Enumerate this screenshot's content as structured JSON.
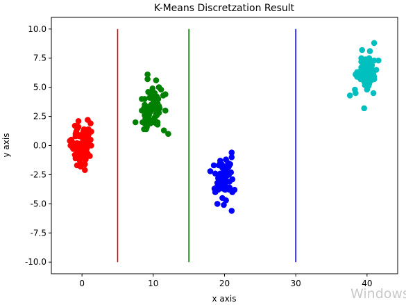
{
  "watermark": "Windows",
  "chart_data": {
    "type": "scatter",
    "title": "K-Means Discretzation Result",
    "xlabel": "x axis",
    "ylabel": "y axis",
    "xlim": [
      -4.3,
      44.3
    ],
    "ylim": [
      -11.0,
      11.0
    ],
    "xticks": [
      0,
      10,
      20,
      30,
      40
    ],
    "yticks": [
      -10.0,
      -7.5,
      -5.0,
      -2.5,
      0.0,
      2.5,
      5.0,
      7.5,
      10.0
    ],
    "grid": false,
    "legend": "none",
    "vlines": [
      {
        "x": 5,
        "ymin": -10,
        "ymax": 10,
        "color": "#e80000"
      },
      {
        "x": 15,
        "ymin": -10,
        "ymax": 10,
        "color": "#007a00"
      },
      {
        "x": 30,
        "ymin": -10,
        "ymax": 10,
        "color": "#0000ee"
      }
    ],
    "series": [
      {
        "color": "#ff0000",
        "points": [
          [
            -0.9,
            -1.1
          ],
          [
            0.1,
            -0.3
          ],
          [
            0.9,
            0.9
          ],
          [
            0.8,
            -0.7
          ],
          [
            0.4,
            0.0
          ],
          [
            0.2,
            1.2
          ],
          [
            -0.9,
            0.8
          ],
          [
            0.7,
            -0.2
          ],
          [
            -0.3,
            -0.5
          ],
          [
            -0.7,
            0.2
          ],
          [
            -0.5,
            0.0
          ],
          [
            1.0,
            0.4
          ],
          [
            -0.7,
            1.5
          ],
          [
            0.8,
            1.2
          ],
          [
            -0.1,
            0.9
          ],
          [
            -0.3,
            0.9
          ],
          [
            -0.7,
            -1.7
          ],
          [
            0.8,
            0.2
          ],
          [
            0.1,
            -0.9
          ],
          [
            -0.4,
            0.8
          ],
          [
            0.6,
            -1.0
          ],
          [
            0.7,
            0.4
          ],
          [
            0.2,
            -0.5
          ],
          [
            0.6,
            -0.8
          ],
          [
            -0.7,
            -0.7
          ],
          [
            0.4,
            -1.6
          ],
          [
            0.4,
            0.9
          ],
          [
            0.1,
            -0.8
          ],
          [
            -0.8,
            1.1
          ],
          [
            0.7,
            -0.2
          ],
          [
            -0.4,
            0.1
          ],
          [
            -0.9,
            1.0
          ],
          [
            -0.1,
            -0.3
          ],
          [
            0.2,
            -0.3
          ],
          [
            -0.5,
            1.6
          ],
          [
            0.2,
            0.3
          ],
          [
            0.4,
            -1.6
          ],
          [
            0.4,
            1.3
          ],
          [
            -0.6,
            1.5
          ],
          [
            0.0,
            0.7
          ],
          [
            0.2,
            -0.3
          ],
          [
            -0.1,
            0.2
          ],
          [
            0.6,
            -0.4
          ],
          [
            -0.3,
            -1.2
          ],
          [
            0.1,
            -0.2
          ],
          [
            0.6,
            0.1
          ],
          [
            -0.7,
            0.2
          ],
          [
            0.6,
            -0.3
          ],
          [
            0.6,
            0.8
          ],
          [
            0.9,
            1.3
          ],
          [
            -0.2,
            -1.8
          ],
          [
            -0.2,
            -1.5
          ],
          [
            -1.0,
            1.7
          ],
          [
            -1.0,
            -0.8
          ],
          [
            0.5,
            1.2
          ],
          [
            -0.6,
            -0.4
          ],
          [
            0.5,
            -1.2
          ],
          [
            0.1,
            0.7
          ],
          [
            0.5,
            0.3
          ],
          [
            -0.4,
            -1.0
          ],
          [
            0.3,
            1.3
          ],
          [
            0.3,
            0.4
          ],
          [
            0.7,
            1.0
          ],
          [
            -0.8,
            -0.1
          ],
          [
            0.6,
            -0.3
          ],
          [
            -0.3,
            -1.3
          ],
          [
            0.9,
            1.4
          ],
          [
            -0.8,
            1.2
          ],
          [
            -0.8,
            -0.1
          ],
          [
            0.3,
            1.4
          ],
          [
            -0.6,
            1.6
          ],
          [
            -1.2,
            -0.3
          ],
          [
            -1.3,
            -0.2
          ],
          [
            -1.2,
            0.2
          ],
          [
            0.4,
            -2.1
          ],
          [
            0.8,
            2.2
          ],
          [
            -0.5,
            2.1
          ],
          [
            -1.5,
            0.5
          ],
          [
            1.3,
            0.0
          ],
          [
            1.2,
            1.9
          ],
          [
            -1.6,
            0.0
          ],
          [
            1.3,
            1.2
          ],
          [
            -1.7,
            0.4
          ],
          [
            1.2,
            0.5
          ],
          [
            1.1,
            -0.9
          ]
        ]
      },
      {
        "color": "#008000",
        "points": [
          [
            10.4,
            3.5
          ],
          [
            9.9,
            3.2
          ],
          [
            8.7,
            3.2
          ],
          [
            10.7,
            4.0
          ],
          [
            9.6,
            3.4
          ],
          [
            10.8,
            2.8
          ],
          [
            8.8,
            4.0
          ],
          [
            9.4,
            2.3
          ],
          [
            9.0,
            3.0
          ],
          [
            9.0,
            2.5
          ],
          [
            9.6,
            2.9
          ],
          [
            10.6,
            3.6
          ],
          [
            10.4,
            1.9
          ],
          [
            9.8,
            2.1
          ],
          [
            10.6,
            3.2
          ],
          [
            10.6,
            2.0
          ],
          [
            9.6,
            3.1
          ],
          [
            10.7,
            3.0
          ],
          [
            10.0,
            3.9
          ],
          [
            9.0,
            1.4
          ],
          [
            10.1,
            4.1
          ],
          [
            9.7,
            3.1
          ],
          [
            10.9,
            3.2
          ],
          [
            10.0,
            4.3
          ],
          [
            8.9,
            3.4
          ],
          [
            10.1,
            2.1
          ],
          [
            9.9,
            3.1
          ],
          [
            10.4,
            2.7
          ],
          [
            10.1,
            2.0
          ],
          [
            8.8,
            2.6
          ],
          [
            10.2,
            2.4
          ],
          [
            9.9,
            4.2
          ],
          [
            9.0,
            3.1
          ],
          [
            9.6,
            1.9
          ],
          [
            10.6,
            3.1
          ],
          [
            10.5,
            4.2
          ],
          [
            10.5,
            2.6
          ],
          [
            8.8,
            3.5
          ],
          [
            9.7,
            3.5
          ],
          [
            10.8,
            3.4
          ],
          [
            9.9,
            4.3
          ],
          [
            10.6,
            2.8
          ],
          [
            10.2,
            4.5
          ],
          [
            9.5,
            4.1
          ],
          [
            10.6,
            1.8
          ],
          [
            9.2,
            2.1
          ],
          [
            8.9,
            2.3
          ],
          [
            9.4,
            2.6
          ],
          [
            8.7,
            1.4
          ],
          [
            9.3,
            4.6
          ],
          [
            10.2,
            2.2
          ],
          [
            9.9,
            4.6
          ],
          [
            11.4,
            4.3
          ],
          [
            11.5,
            1.3
          ],
          [
            10.4,
            5.6
          ],
          [
            9.1,
            1.6
          ],
          [
            11.7,
            4.4
          ],
          [
            9.2,
            6.1
          ],
          [
            9.2,
            5.7
          ],
          [
            10.8,
            5.0
          ],
          [
            8.4,
            3.0
          ],
          [
            8.4,
            4.0
          ],
          [
            11.1,
            4.8
          ],
          [
            7.5,
            2.0
          ],
          [
            12.1,
            1.0
          ],
          [
            11.7,
            3.0
          ],
          [
            9.9,
            4.9
          ],
          [
            8.5,
            2.0
          ],
          [
            9.6,
            4.4
          ],
          [
            8.8,
            1.9
          ]
        ]
      },
      {
        "color": "#0000ff",
        "points": [
          [
            19.8,
            -2.4
          ],
          [
            19.0,
            -3.5
          ],
          [
            20.2,
            -2.6
          ],
          [
            20.1,
            -3.8
          ],
          [
            19.8,
            -3.7
          ],
          [
            20.5,
            -1.5
          ],
          [
            19.6,
            -3.1
          ],
          [
            19.7,
            -1.7
          ],
          [
            20.1,
            -3.3
          ],
          [
            20.7,
            -3.1
          ],
          [
            20.0,
            -3.3
          ],
          [
            20.6,
            -2.5
          ],
          [
            19.1,
            -3.8
          ],
          [
            20.3,
            -2.4
          ],
          [
            19.2,
            -1.7
          ],
          [
            19.9,
            -2.2
          ],
          [
            20.7,
            -3.6
          ],
          [
            20.3,
            -3.1
          ],
          [
            20.3,
            -2.2
          ],
          [
            19.7,
            -3.1
          ],
          [
            20.2,
            -2.3
          ],
          [
            19.5,
            -3.5
          ],
          [
            19.7,
            -2.4
          ],
          [
            19.4,
            -1.5
          ],
          [
            19.7,
            -1.9
          ],
          [
            19.4,
            -2.4
          ],
          [
            19.6,
            -1.6
          ],
          [
            20.2,
            -3.0
          ],
          [
            20.4,
            -1.9
          ],
          [
            19.0,
            -3.2
          ],
          [
            20.7,
            -3.8
          ],
          [
            19.7,
            -3.2
          ],
          [
            19.9,
            -1.8
          ],
          [
            20.0,
            -2.0
          ],
          [
            20.4,
            -3.7
          ],
          [
            20.9,
            -2.3
          ],
          [
            20.3,
            -2.5
          ],
          [
            20.5,
            -2.4
          ],
          [
            19.3,
            -3.4
          ],
          [
            19.6,
            -2.5
          ],
          [
            19.8,
            -3.5
          ],
          [
            20.8,
            -1.6
          ],
          [
            19.9,
            -3.3
          ],
          [
            20.3,
            -2.6
          ],
          [
            20.2,
            -1.2
          ],
          [
            20.6,
            -1.8
          ],
          [
            20.3,
            -2.4
          ],
          [
            20.1,
            -3.5
          ],
          [
            19.3,
            -1.7
          ],
          [
            19.8,
            -2.6
          ],
          [
            19.9,
            -2.8
          ],
          [
            19.1,
            -2.8
          ],
          [
            20.0,
            -2.6
          ],
          [
            19.2,
            -3.7
          ],
          [
            18.7,
            -2.4
          ],
          [
            18.6,
            -3.7
          ],
          [
            19.7,
            -4.5
          ],
          [
            21.0,
            -1.0
          ],
          [
            21.0,
            -0.6
          ],
          [
            21.4,
            -3.8
          ],
          [
            21.1,
            -4.0
          ],
          [
            18.5,
            -1.7
          ],
          [
            18.0,
            -2.2
          ],
          [
            19.0,
            -5.0
          ],
          [
            21.0,
            -5.6
          ],
          [
            20.2,
            -4.7
          ],
          [
            21.1,
            -2.9
          ],
          [
            19.4,
            -1.3
          ],
          [
            19.9,
            -5.1
          ],
          [
            18.7,
            -4.0
          ]
        ]
      },
      {
        "color": "#00bfbf",
        "points": [
          [
            40.5,
            6.1
          ],
          [
            39.7,
            6.1
          ],
          [
            40.6,
            7.1
          ],
          [
            40.9,
            6.1
          ],
          [
            39.7,
            5.2
          ],
          [
            40.1,
            6.0
          ],
          [
            39.7,
            7.0
          ],
          [
            41.0,
            5.7
          ],
          [
            40.3,
            5.9
          ],
          [
            39.8,
            7.4
          ],
          [
            40.2,
            5.8
          ],
          [
            40.6,
            6.8
          ],
          [
            39.2,
            6.7
          ],
          [
            40.3,
            5.3
          ],
          [
            39.2,
            7.2
          ],
          [
            40.2,
            5.4
          ],
          [
            39.0,
            6.2
          ],
          [
            40.5,
            6.2
          ],
          [
            40.3,
            6.3
          ],
          [
            39.7,
            5.2
          ],
          [
            39.8,
            6.4
          ],
          [
            40.6,
            5.8
          ],
          [
            39.6,
            5.5
          ],
          [
            40.8,
            6.3
          ],
          [
            40.7,
            6.5
          ],
          [
            39.7,
            6.2
          ],
          [
            40.2,
            6.4
          ],
          [
            40.6,
            6.6
          ],
          [
            39.7,
            5.6
          ],
          [
            40.9,
            6.0
          ],
          [
            39.6,
            6.8
          ],
          [
            40.0,
            5.8
          ],
          [
            40.3,
            7.1
          ],
          [
            39.5,
            7.2
          ],
          [
            40.3,
            6.2
          ],
          [
            39.8,
            6.3
          ],
          [
            41.0,
            5.9
          ],
          [
            39.5,
            5.8
          ],
          [
            39.1,
            6.4
          ],
          [
            40.3,
            6.7
          ],
          [
            40.0,
            7.2
          ],
          [
            39.1,
            5.7
          ],
          [
            41.0,
            7.3
          ],
          [
            40.2,
            6.7
          ],
          [
            40.7,
            6.1
          ],
          [
            40.5,
            6.6
          ],
          [
            40.2,
            5.1
          ],
          [
            40.6,
            5.6
          ],
          [
            40.3,
            6.0
          ],
          [
            40.3,
            5.6
          ],
          [
            40.0,
            6.9
          ],
          [
            40.9,
            6.4
          ],
          [
            40.3,
            7.0
          ],
          [
            39.0,
            6.2
          ],
          [
            40.4,
            5.8
          ],
          [
            40.3,
            7.5
          ],
          [
            39.4,
            6.8
          ],
          [
            40.7,
            6.9
          ],
          [
            39.2,
            7.5
          ],
          [
            39.2,
            6.0
          ],
          [
            40.4,
            8.1
          ],
          [
            41.0,
            8.8
          ],
          [
            39.6,
            3.2
          ],
          [
            37.6,
            4.3
          ],
          [
            41.3,
            6.5
          ],
          [
            38.6,
            5.9
          ],
          [
            41.6,
            7.3
          ],
          [
            39.3,
            8.2
          ],
          [
            38.4,
            4.5
          ],
          [
            40.9,
            4.5
          ],
          [
            38.4,
            6.1
          ],
          [
            38.3,
            4.8
          ],
          [
            40.0,
            4.8
          ],
          [
            38.6,
            6.3
          ]
        ]
      }
    ]
  }
}
